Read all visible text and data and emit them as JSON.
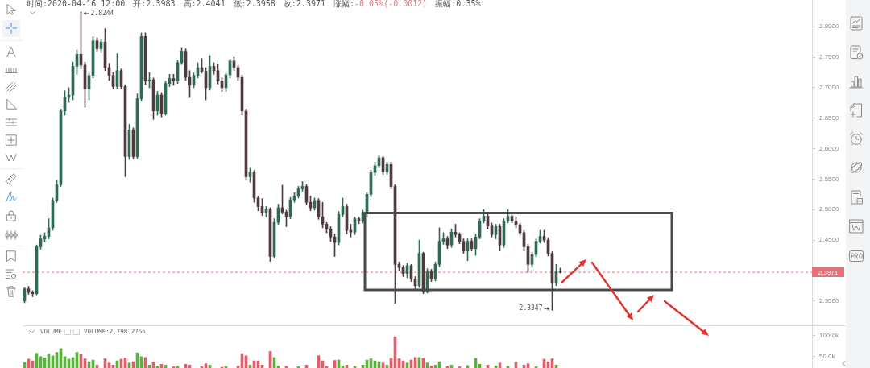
{
  "chart_data": [
    {
      "type": "candlestick",
      "categories": [
        null,
        null,
        null,
        null,
        null,
        null,
        null,
        null,
        null,
        null,
        null,
        null,
        null,
        null,
        null,
        null,
        null,
        null,
        null,
        null,
        null,
        null,
        null,
        null,
        null,
        null,
        null,
        null,
        null,
        null,
        null,
        null,
        null,
        null,
        null,
        null,
        null,
        null,
        null,
        null,
        null,
        null,
        null,
        null,
        null,
        null,
        null,
        null,
        null,
        null,
        null,
        null,
        null,
        null,
        null,
        null,
        null,
        null,
        null,
        null,
        null,
        null,
        null,
        null,
        null,
        null,
        null,
        null,
        null,
        null,
        null,
        null,
        null,
        null,
        null,
        null,
        null,
        null,
        null,
        null,
        null,
        null,
        null,
        null,
        null,
        null,
        null,
        null,
        null,
        null,
        null,
        null,
        null,
        null,
        null,
        null,
        null,
        null,
        null,
        null,
        null,
        null,
        null,
        null,
        null,
        null,
        null,
        null,
        null,
        null,
        null,
        null,
        null,
        null,
        null,
        null,
        null,
        null,
        null,
        null,
        null,
        null,
        null,
        null,
        null,
        null,
        null,
        null,
        null,
        null,
        null,
        null,
        null,
        null,
        null,
        null,
        null,
        null,
        null,
        null,
        null,
        null,
        null,
        null,
        null,
        null,
        null,
        null,
        null,
        null,
        null,
        null,
        null,
        null,
        null,
        null,
        null,
        null,
        null,
        null,
        null,
        null,
        null,
        null,
        null,
        null,
        null,
        null,
        null,
        null,
        null,
        null,
        null,
        null,
        null,
        null,
        null,
        null,
        null,
        null,
        null,
        null,
        null,
        null,
        null,
        null,
        null,
        null,
        null,
        null,
        null,
        null,
        null,
        null,
        null,
        null
      ],
      "ohlc": [
        [
          2.35,
          2.372,
          2.347,
          2.37
        ],
        [
          2.37,
          2.374,
          2.361,
          2.364
        ],
        [
          2.364,
          2.367,
          2.357,
          2.362
        ],
        [
          2.362,
          2.442,
          2.36,
          2.439
        ],
        [
          2.439,
          2.458,
          2.435,
          2.452
        ],
        [
          2.452,
          2.462,
          2.447,
          2.456
        ],
        [
          2.456,
          2.485,
          2.452,
          2.47
        ],
        [
          2.47,
          2.519,
          2.466,
          2.515
        ],
        [
          2.515,
          2.548,
          2.512,
          2.541
        ],
        [
          2.541,
          2.665,
          2.538,
          2.662
        ],
        [
          2.662,
          2.695,
          2.655,
          2.684
        ],
        [
          2.684,
          2.7,
          2.676,
          2.688
        ],
        [
          2.688,
          2.742,
          2.68,
          2.735
        ],
        [
          2.735,
          2.762,
          2.722,
          2.755
        ],
        [
          2.755,
          2.8244,
          2.731,
          2.737
        ],
        [
          2.737,
          2.742,
          2.668,
          2.698
        ],
        [
          2.698,
          2.724,
          2.68,
          2.72
        ],
        [
          2.72,
          2.784,
          2.716,
          2.777
        ],
        [
          2.777,
          2.782,
          2.76,
          2.764
        ],
        [
          2.764,
          2.78,
          2.758,
          2.775
        ],
        [
          2.775,
          2.797,
          2.728,
          2.733
        ],
        [
          2.733,
          2.74,
          2.712,
          2.72
        ],
        [
          2.72,
          2.725,
          2.698,
          2.702
        ],
        [
          2.702,
          2.756,
          2.699,
          2.728
        ],
        [
          2.728,
          2.731,
          2.698,
          2.702
        ],
        [
          2.702,
          2.705,
          2.554,
          2.587
        ],
        [
          2.587,
          2.64,
          2.582,
          2.631
        ],
        [
          2.631,
          2.634,
          2.583,
          2.587
        ],
        [
          2.587,
          2.69,
          2.584,
          2.682
        ],
        [
          2.682,
          2.79,
          2.678,
          2.784
        ],
        [
          2.784,
          2.79,
          2.705,
          2.711
        ],
        [
          2.711,
          2.725,
          2.7,
          2.713
        ],
        [
          2.713,
          2.716,
          2.648,
          2.662
        ],
        [
          2.662,
          2.694,
          2.655,
          2.688
        ],
        [
          2.688,
          2.692,
          2.652,
          2.658
        ],
        [
          2.658,
          2.711,
          2.655,
          2.707
        ],
        [
          2.707,
          2.722,
          2.702,
          2.715
        ],
        [
          2.715,
          2.722,
          2.704,
          2.711
        ],
        [
          2.711,
          2.745,
          2.707,
          2.741
        ],
        [
          2.741,
          2.766,
          2.738,
          2.76
        ],
        [
          2.76,
          2.764,
          2.712,
          2.717
        ],
        [
          2.717,
          2.728,
          2.684,
          2.704
        ],
        [
          2.704,
          2.724,
          2.7,
          2.72
        ],
        [
          2.72,
          2.741,
          2.716,
          2.733
        ],
        [
          2.733,
          2.748,
          2.724,
          2.727
        ],
        [
          2.727,
          2.733,
          2.68,
          2.7
        ],
        [
          2.7,
          2.753,
          2.696,
          2.735
        ],
        [
          2.735,
          2.741,
          2.722,
          2.728
        ],
        [
          2.728,
          2.738,
          2.706,
          2.711
        ],
        [
          2.711,
          2.716,
          2.694,
          2.7
        ],
        [
          2.7,
          2.724,
          2.694,
          2.721
        ],
        [
          2.721,
          2.747,
          2.716,
          2.744
        ],
        [
          2.744,
          2.75,
          2.728,
          2.733
        ],
        [
          2.733,
          2.737,
          2.712,
          2.717
        ],
        [
          2.717,
          2.721,
          2.655,
          2.662
        ],
        [
          2.662,
          2.665,
          2.548,
          2.554
        ],
        [
          2.554,
          2.568,
          2.545,
          2.561
        ],
        [
          2.561,
          2.564,
          2.512,
          2.519
        ],
        [
          2.519,
          2.522,
          2.498,
          2.505
        ],
        [
          2.505,
          2.518,
          2.49,
          2.495
        ],
        [
          2.495,
          2.505,
          2.488,
          2.5
        ],
        [
          2.5,
          2.503,
          2.415,
          2.423
        ],
        [
          2.423,
          2.485,
          2.42,
          2.479
        ],
        [
          2.479,
          2.509,
          2.475,
          2.503
        ],
        [
          2.503,
          2.54,
          2.493,
          2.496
        ],
        [
          2.496,
          2.499,
          2.472,
          2.489
        ],
        [
          2.489,
          2.52,
          2.485,
          2.516
        ],
        [
          2.516,
          2.528,
          2.512,
          2.522
        ],
        [
          2.522,
          2.538,
          2.519,
          2.534
        ],
        [
          2.534,
          2.546,
          2.53,
          2.538
        ],
        [
          2.538,
          2.541,
          2.508,
          2.512
        ],
        [
          2.512,
          2.522,
          2.498,
          2.503
        ],
        [
          2.503,
          2.519,
          2.499,
          2.515
        ],
        [
          2.515,
          2.518,
          2.484,
          2.488
        ],
        [
          2.488,
          2.512,
          2.47,
          2.476
        ],
        [
          2.476,
          2.479,
          2.462,
          2.468
        ],
        [
          2.468,
          2.472,
          2.448,
          2.455
        ],
        [
          2.455,
          2.46,
          2.423,
          2.446
        ],
        [
          2.446,
          2.497,
          2.442,
          2.492
        ],
        [
          2.492,
          2.519,
          2.488,
          2.505
        ],
        [
          2.505,
          2.509,
          2.46,
          2.466
        ],
        [
          2.466,
          2.476,
          2.455,
          2.463
        ],
        [
          2.463,
          2.488,
          2.459,
          2.485
        ],
        [
          2.485,
          2.488,
          2.477,
          2.481
        ],
        [
          2.481,
          2.499,
          2.478,
          2.495
        ],
        [
          2.495,
          2.528,
          2.488,
          2.525
        ],
        [
          2.525,
          2.565,
          2.521,
          2.561
        ],
        [
          2.561,
          2.578,
          2.556,
          2.572
        ],
        [
          2.572,
          2.589,
          2.568,
          2.585
        ],
        [
          2.585,
          2.587,
          2.558,
          2.562
        ],
        [
          2.562,
          2.578,
          2.558,
          2.574
        ],
        [
          2.574,
          2.578,
          2.534,
          2.538
        ],
        [
          2.538,
          2.541,
          2.346,
          2.41
        ],
        [
          2.41,
          2.414,
          2.4,
          2.405
        ],
        [
          2.405,
          2.408,
          2.39,
          2.395
        ],
        [
          2.395,
          2.412,
          2.388,
          2.408
        ],
        [
          2.408,
          2.41,
          2.382,
          2.386
        ],
        [
          2.386,
          2.39,
          2.37,
          2.375
        ],
        [
          2.375,
          2.45,
          2.372,
          2.428
        ],
        [
          2.428,
          2.43,
          2.362,
          2.366
        ],
        [
          2.366,
          2.403,
          2.363,
          2.398
        ],
        [
          2.398,
          2.402,
          2.382,
          2.386
        ],
        [
          2.386,
          2.414,
          2.383,
          2.41
        ],
        [
          2.41,
          2.47,
          2.406,
          2.448
        ],
        [
          2.448,
          2.462,
          2.443,
          2.452
        ],
        [
          2.452,
          2.456,
          2.436,
          2.442
        ],
        [
          2.442,
          2.468,
          2.438,
          2.463
        ],
        [
          2.463,
          2.476,
          2.455,
          2.459
        ],
        [
          2.459,
          2.462,
          2.444,
          2.448
        ],
        [
          2.448,
          2.452,
          2.428,
          2.432
        ],
        [
          2.432,
          2.452,
          2.416,
          2.448
        ],
        [
          2.448,
          2.452,
          2.432,
          2.436
        ],
        [
          2.436,
          2.459,
          2.425,
          2.455
        ],
        [
          2.455,
          2.485,
          2.452,
          2.481
        ],
        [
          2.481,
          2.5,
          2.478,
          2.489
        ],
        [
          2.489,
          2.493,
          2.468,
          2.473
        ],
        [
          2.473,
          2.478,
          2.455,
          2.459
        ],
        [
          2.459,
          2.476,
          2.452,
          2.472
        ],
        [
          2.472,
          2.476,
          2.432,
          2.442
        ],
        [
          2.442,
          2.485,
          2.438,
          2.481
        ],
        [
          2.481,
          2.5,
          2.478,
          2.489
        ],
        [
          2.489,
          2.495,
          2.478,
          2.481
        ],
        [
          2.481,
          2.488,
          2.47,
          2.475
        ],
        [
          2.475,
          2.478,
          2.458,
          2.462
        ],
        [
          2.462,
          2.466,
          2.432,
          2.439
        ],
        [
          2.439,
          2.443,
          2.397,
          2.41
        ],
        [
          2.41,
          2.43,
          2.405,
          2.426
        ],
        [
          2.426,
          2.452,
          2.422,
          2.448
        ],
        [
          2.448,
          2.466,
          2.445,
          2.456
        ],
        [
          2.456,
          2.466,
          2.446,
          2.45
        ],
        [
          2.45,
          2.454,
          2.424,
          2.428
        ],
        [
          2.428,
          2.431,
          2.3347,
          2.379
        ],
        [
          2.379,
          2.41,
          2.375,
          2.398
        ],
        [
          2.3983,
          2.4041,
          2.3958,
          2.3971
        ],
        null,
        null,
        null,
        null,
        null,
        null,
        null,
        null,
        null,
        null,
        null,
        null,
        null,
        null,
        null,
        null,
        null,
        null,
        null,
        null,
        null,
        null,
        null,
        null,
        null,
        null,
        null,
        null,
        null,
        null,
        null,
        null,
        null,
        null,
        null,
        null,
        null,
        null,
        null,
        null,
        null,
        null,
        null,
        null,
        null,
        null,
        null,
        null,
        null,
        null,
        null,
        null,
        null,
        null,
        null,
        null,
        null,
        null,
        null,
        null,
        null,
        null
      ],
      "colors": [
        "#2f6b52",
        "#4f3b3e",
        "#4f3b3e",
        "#2f6b52",
        "#2f6b52",
        "#2f6b52",
        "#2f6b52",
        "#2f6b52",
        "#2f6b52",
        "#2f6b52",
        "#2f6b52",
        "#2f6b52",
        "#2f6b52",
        "#2f6b52",
        "#4f3b3e",
        "#4f3b3e",
        "#2f6b52",
        "#2f6b52",
        "#4f3b3e",
        "#2f6b52",
        "#4f3b3e",
        "#4f3b3e",
        "#4f3b3e",
        "#2f6b52",
        "#4f3b3e",
        "#4f3b3e",
        "#2f6b52",
        "#4f3b3e",
        "#2f6b52",
        "#2f6b52",
        "#4f3b3e",
        "#2f6b52",
        "#4f3b3e",
        "#2f6b52",
        "#4f3b3e",
        "#2f6b52",
        "#2f6b52",
        "#4f3b3e",
        "#2f6b52",
        "#2f6b52",
        "#4f3b3e",
        "#4f3b3e",
        "#2f6b52",
        "#2f6b52",
        "#4f3b3e",
        "#4f3b3e",
        "#2f6b52",
        "#4f3b3e",
        "#4f3b3e",
        "#4f3b3e",
        "#2f6b52",
        "#2f6b52",
        "#4f3b3e",
        "#4f3b3e",
        "#4f3b3e",
        "#4f3b3e",
        "#2f6b52",
        "#4f3b3e",
        "#4f3b3e",
        "#4f3b3e",
        "#2f6b52",
        "#4f3b3e",
        "#2f6b52",
        "#2f6b52",
        "#4f3b3e",
        "#4f3b3e",
        "#2f6b52",
        "#2f6b52",
        "#2f6b52",
        "#2f6b52",
        "#4f3b3e",
        "#4f3b3e",
        "#2f6b52",
        "#4f3b3e",
        "#4f3b3e",
        "#4f3b3e",
        "#4f3b3e",
        "#4f3b3e",
        "#2f6b52",
        "#2f6b52",
        "#4f3b3e",
        "#4f3b3e",
        "#2f6b52",
        "#4f3b3e",
        "#2f6b52",
        "#2f6b52",
        "#2f6b52",
        "#2f6b52",
        "#2f6b52",
        "#4f3b3e",
        "#2f6b52",
        "#4f3b3e",
        "#4f3b3e",
        "#4f3b3e",
        "#4f3b3e",
        "#2f6b52",
        "#4f3b3e",
        "#4f3b3e",
        "#2f6b52",
        "#4f3b3e",
        "#2f6b52",
        "#4f3b3e",
        "#2f6b52",
        "#2f6b52",
        "#2f6b52",
        "#4f3b3e",
        "#2f6b52",
        "#4f3b3e",
        "#4f3b3e",
        "#4f3b3e",
        "#2f6b52",
        "#4f3b3e",
        "#2f6b52",
        "#2f6b52",
        "#2f6b52",
        "#4f3b3e",
        "#4f3b3e",
        "#2f6b52",
        "#4f3b3e",
        "#2f6b52",
        "#2f6b52",
        "#4f3b3e",
        "#4f3b3e",
        "#4f3b3e",
        "#4f3b3e",
        "#4f3b3e",
        "#2f6b52",
        "#2f6b52",
        "#2f6b52",
        "#4f3b3e",
        "#4f3b3e",
        "#4f3b3e",
        "#2f6b52",
        "#4f3b3e",
        null,
        null,
        null,
        null,
        null,
        null,
        null,
        null,
        null,
        null,
        null,
        null,
        null,
        null,
        null,
        null,
        null,
        null,
        null,
        null,
        null,
        null,
        null,
        null,
        null,
        null,
        null,
        null,
        null,
        null,
        null,
        null,
        null,
        null,
        null,
        null,
        null,
        null,
        null,
        null,
        null,
        null,
        null,
        null,
        null,
        null,
        null,
        null,
        null,
        null,
        null,
        null,
        null,
        null,
        null,
        null,
        null,
        null,
        null,
        null,
        null,
        null
      ],
      "ylim": [
        2.31,
        2.844
      ],
      "yticks": [
        {
          "value": 2.35,
          "label": "2.3500"
        },
        {
          "value": 2.4,
          "label": null
        },
        {
          "value": 2.45,
          "label": "2.4500"
        },
        {
          "value": 2.5,
          "label": "2.5000"
        },
        {
          "value": 2.55,
          "label": "2.5500"
        },
        {
          "value": 2.6,
          "label": "2.6000"
        },
        {
          "value": 2.65,
          "label": "2.6500"
        },
        {
          "value": 2.7,
          "label": "2.7000"
        },
        {
          "value": 2.75,
          "label": "2.7500"
        },
        {
          "value": 2.8,
          "label": "2.8000"
        }
      ],
      "ref_lines": [
        {
          "axis": "y",
          "value": 2.3971,
          "label": "2.3971",
          "color": "#e57179",
          "line_style": "dashed"
        }
      ],
      "annotations": [
        "时间:2020-04-16 12:00",
        "开:2.3983",
        "高:2.4041",
        "低:2.3958",
        "收:2.3971",
        "涨幅:",
        "-0.05%(-0.0012)",
        "振幅:0.35%",
        "2.8244",
        "2.3347"
      ],
      "tick_labels": "y"
    },
    {
      "type": "bar",
      "categories": [
        null,
        null,
        null,
        null,
        null,
        null,
        null,
        null,
        null,
        null,
        null,
        null,
        null,
        null,
        null,
        null,
        null,
        null,
        null,
        null,
        null,
        null,
        null,
        null,
        null,
        null,
        null,
        null,
        null,
        null,
        null,
        null,
        null,
        null,
        null,
        null,
        null,
        null,
        null,
        null,
        null,
        null,
        null,
        null,
        null,
        null,
        null,
        null,
        null,
        null,
        null,
        null,
        null,
        null,
        null,
        null,
        null,
        null,
        null,
        null,
        null,
        null,
        null,
        null,
        null,
        null,
        null,
        null,
        null,
        null,
        null,
        null,
        null,
        null,
        null,
        null,
        null,
        null,
        null,
        null,
        null,
        null,
        null,
        null,
        null,
        null,
        null,
        null,
        null,
        null,
        null,
        null,
        null,
        null,
        null,
        null,
        null,
        null,
        null,
        null,
        null,
        null,
        null,
        null,
        null,
        null,
        null,
        null,
        null,
        null,
        null,
        null,
        null,
        null,
        null,
        null,
        null,
        null,
        null,
        null,
        null,
        null,
        null,
        null,
        null,
        null,
        null,
        null,
        null,
        null,
        null,
        null,
        null,
        null,
        null,
        null,
        null,
        null,
        null,
        null,
        null,
        null,
        null,
        null,
        null,
        null,
        null,
        null,
        null,
        null,
        null,
        null,
        null,
        null,
        null,
        null,
        null,
        null,
        null,
        null,
        null,
        null,
        null,
        null,
        null,
        null,
        null,
        null,
        null,
        null,
        null,
        null,
        null,
        null,
        null,
        null,
        null,
        null,
        null,
        null,
        null,
        null,
        null,
        null,
        null,
        null,
        null,
        null,
        null,
        null,
        null,
        null,
        null,
        null,
        null,
        null
      ],
      "values": [
        36000,
        44000,
        40000,
        58000,
        50000,
        47000,
        56000,
        52000,
        60000,
        69000,
        50000,
        44000,
        48000,
        60000,
        55000,
        45000,
        38000,
        42000,
        30000,
        null,
        45000,
        35000,
        30000,
        40000,
        44000,
        47000,
        35000,
        38000,
        59000,
        50000,
        48000,
        30000,
        36000,
        28000,
        32000,
        30000,
        null,
        26000,
        28000,
        null,
        32000,
        30000,
        null,
        null,
        26000,
        33000,
        30000,
        null,
        null,
        25000,
        27000,
        null,
        null,
        28000,
        57000,
        52000,
        30000,
        40000,
        40000,
        30000,
        null,
        62000,
        48000,
        28000,
        null,
        27000,
        null,
        null,
        26000,
        null,
        30000,
        null,
        null,
        52000,
        40000,
        27000,
        null,
        41000,
        42000,
        28000,
        30000,
        null,
        27000,
        null,
        30000,
        42000,
        45000,
        40000,
        38000,
        35000,
        30000,
        46000,
        97000,
        45000,
        40000,
        35000,
        42000,
        48000,
        48000,
        46000,
        35000,
        28000,
        30000,
        38000,
        null,
        27000,
        30000,
        null,
        26000,
        null,
        29000,
        null,
        46000,
        32000,
        null,
        30000,
        null,
        28000,
        35000,
        null,
        27000,
        null,
        37000,
        null,
        30000,
        33000,
        null,
        26000,
        null,
        44000,
        38000,
        45000,
        30000,
        null,
        null,
        null,
        null,
        null,
        null,
        null,
        null,
        null,
        null,
        null,
        null,
        null,
        null,
        null,
        null,
        null,
        null,
        null,
        null,
        null,
        null,
        null,
        null,
        null,
        null,
        null,
        null,
        null,
        null,
        null,
        null,
        null,
        null,
        null,
        null,
        null,
        null,
        null,
        null,
        null,
        null,
        null,
        null,
        null,
        null,
        null,
        null,
        null,
        null,
        null,
        null,
        null,
        null,
        null,
        null,
        null,
        null,
        null,
        null,
        null,
        null,
        null
      ],
      "colors": [
        "#58b23c",
        "#e35d6a",
        "#e35d6a",
        "#58b23c",
        "#58b23c",
        "#58b23c",
        "#58b23c",
        "#58b23c",
        "#58b23c",
        "#58b23c",
        "#58b23c",
        "#58b23c",
        "#58b23c",
        "#58b23c",
        "#e35d6a",
        "#e35d6a",
        "#58b23c",
        "#58b23c",
        "#e35d6a",
        "#58b23c",
        "#e35d6a",
        "#e35d6a",
        "#e35d6a",
        "#58b23c",
        "#e35d6a",
        "#e35d6a",
        "#58b23c",
        "#e35d6a",
        "#58b23c",
        "#58b23c",
        "#e35d6a",
        "#58b23c",
        "#e35d6a",
        "#58b23c",
        "#e35d6a",
        "#58b23c",
        "#58b23c",
        "#e35d6a",
        "#58b23c",
        "#58b23c",
        "#e35d6a",
        "#e35d6a",
        "#58b23c",
        "#58b23c",
        "#e35d6a",
        "#e35d6a",
        "#58b23c",
        "#e35d6a",
        "#e35d6a",
        "#e35d6a",
        "#58b23c",
        "#58b23c",
        "#e35d6a",
        "#e35d6a",
        "#e35d6a",
        "#e35d6a",
        "#58b23c",
        "#e35d6a",
        "#e35d6a",
        "#e35d6a",
        "#58b23c",
        "#e35d6a",
        "#58b23c",
        "#58b23c",
        "#e35d6a",
        "#e35d6a",
        "#58b23c",
        "#58b23c",
        "#58b23c",
        "#58b23c",
        "#e35d6a",
        "#e35d6a",
        "#58b23c",
        "#e35d6a",
        "#e35d6a",
        "#e35d6a",
        "#e35d6a",
        "#e35d6a",
        "#58b23c",
        "#58b23c",
        "#e35d6a",
        "#e35d6a",
        "#58b23c",
        "#e35d6a",
        "#58b23c",
        "#58b23c",
        "#58b23c",
        "#58b23c",
        "#58b23c",
        "#e35d6a",
        "#58b23c",
        "#e35d6a",
        "#e35d6a",
        "#e35d6a",
        "#e35d6a",
        "#58b23c",
        "#e35d6a",
        "#e35d6a",
        "#58b23c",
        "#e35d6a",
        "#58b23c",
        "#e35d6a",
        "#58b23c",
        "#58b23c",
        "#58b23c",
        "#e35d6a",
        "#58b23c",
        "#e35d6a",
        "#e35d6a",
        "#e35d6a",
        "#58b23c",
        "#e35d6a",
        "#58b23c",
        "#58b23c",
        "#58b23c",
        "#e35d6a",
        "#e35d6a",
        "#58b23c",
        "#e35d6a",
        "#58b23c",
        "#58b23c",
        "#e35d6a",
        "#e35d6a",
        "#e35d6a",
        "#e35d6a",
        "#e35d6a",
        "#58b23c",
        "#58b23c",
        "#58b23c",
        "#e35d6a",
        "#e35d6a",
        "#e35d6a",
        "#58b23c",
        "#e35d6a",
        null,
        null,
        null,
        null,
        null,
        null,
        null,
        null,
        null,
        null,
        null,
        null,
        null,
        null,
        null,
        null,
        null,
        null,
        null,
        null,
        null,
        null,
        null,
        null,
        null,
        null,
        null,
        null,
        null,
        null,
        null,
        null,
        null,
        null,
        null,
        null,
        null,
        null,
        null,
        null,
        null,
        null,
        null,
        null,
        null,
        null,
        null,
        null,
        null,
        null,
        null,
        null,
        null,
        null,
        null,
        null,
        null,
        null,
        null,
        null,
        null,
        null
      ],
      "ylim": [
        23000,
        122000
      ],
      "yticks": [
        {
          "value": 50000,
          "label": "50.0k"
        },
        {
          "value": 100000,
          "label": "100.0k"
        }
      ],
      "annotations": [
        "VOLUME",
        "VOLUME:2,798.2766"
      ],
      "tick_labels": "y"
    }
  ]
}
